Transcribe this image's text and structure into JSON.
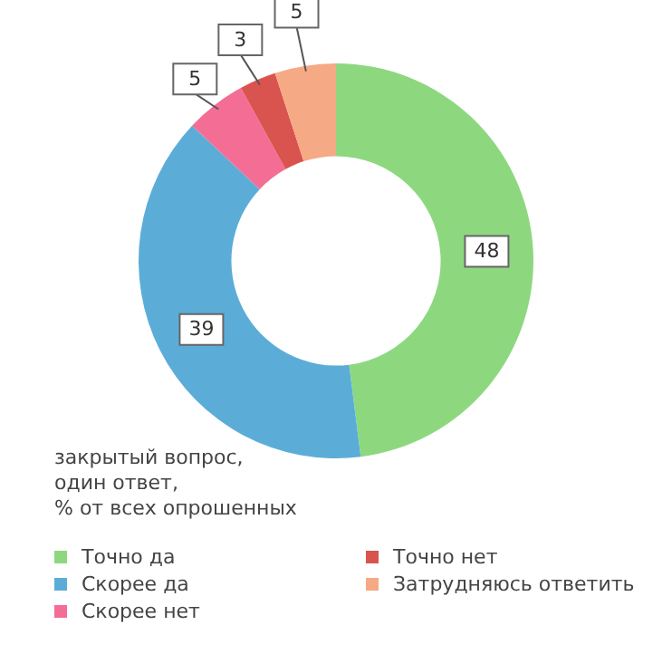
{
  "chart_data": {
    "type": "donut",
    "categories": [
      "Точно да",
      "Скорее да",
      "Скорее нет",
      "Точно нет",
      "Затрудняюсь ответить"
    ],
    "values": [
      48,
      39,
      5,
      3,
      5
    ],
    "colors": [
      "#8dd87f",
      "#5badd8",
      "#f46d95",
      "#d9534f",
      "#f6a985"
    ],
    "data_labels": true,
    "legend": "bottom",
    "annotations": [
      "закрытый вопрос,\nодин ответ,\n% от всех опрошенных"
    ]
  }
}
